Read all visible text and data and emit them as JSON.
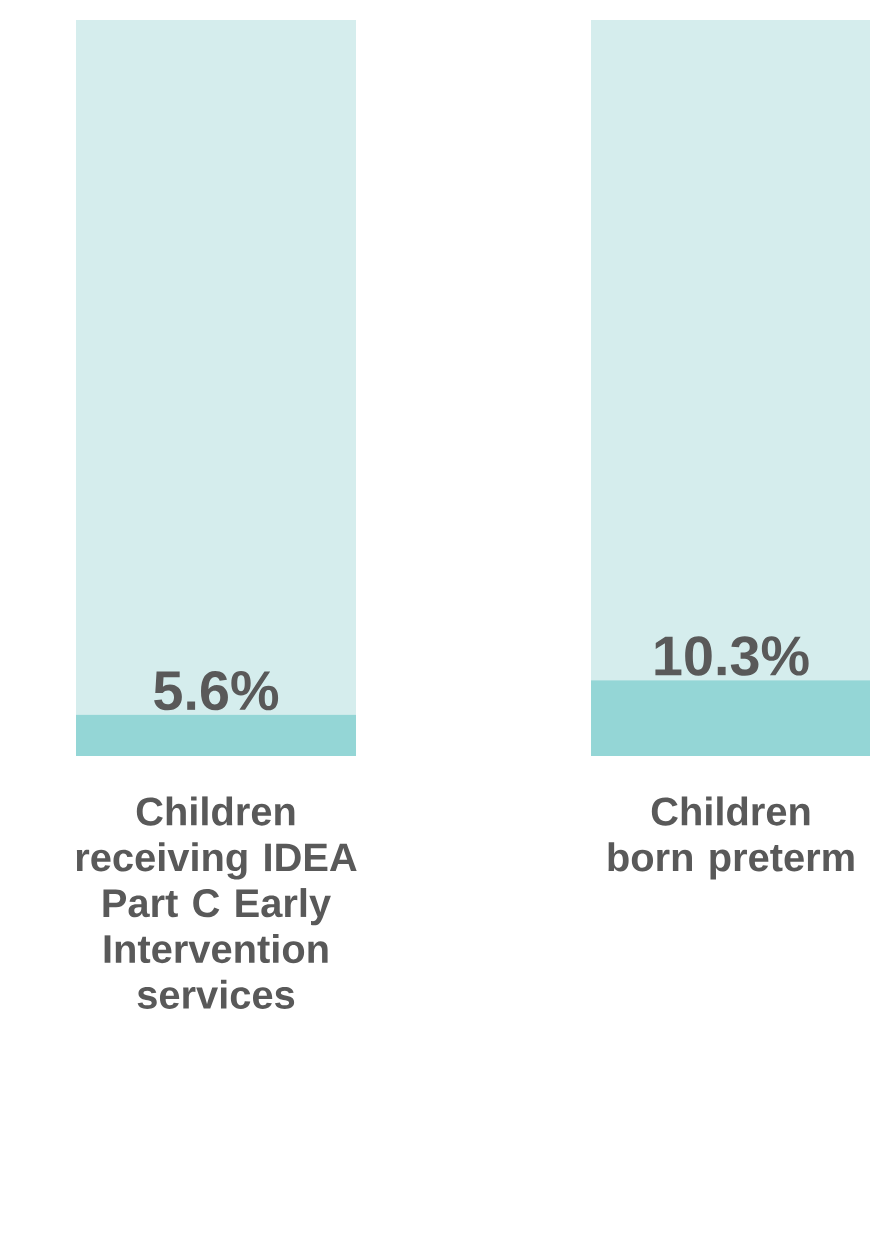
{
  "chart_data": {
    "type": "bar",
    "stacked": true,
    "categories": [
      "Children receiving IDEA Part C Early Intervention services",
      "Children born preterm"
    ],
    "series": [
      {
        "color": "#94d6d6",
        "values": [
          5.6,
          10.3
        ],
        "value_labels": [
          "5.6%",
          "10.3%"
        ]
      },
      {
        "color": "#d5eded",
        "values": [
          94.4,
          89.7
        ]
      }
    ],
    "ylim": [
      0,
      100
    ],
    "tick_labels": "x"
  }
}
